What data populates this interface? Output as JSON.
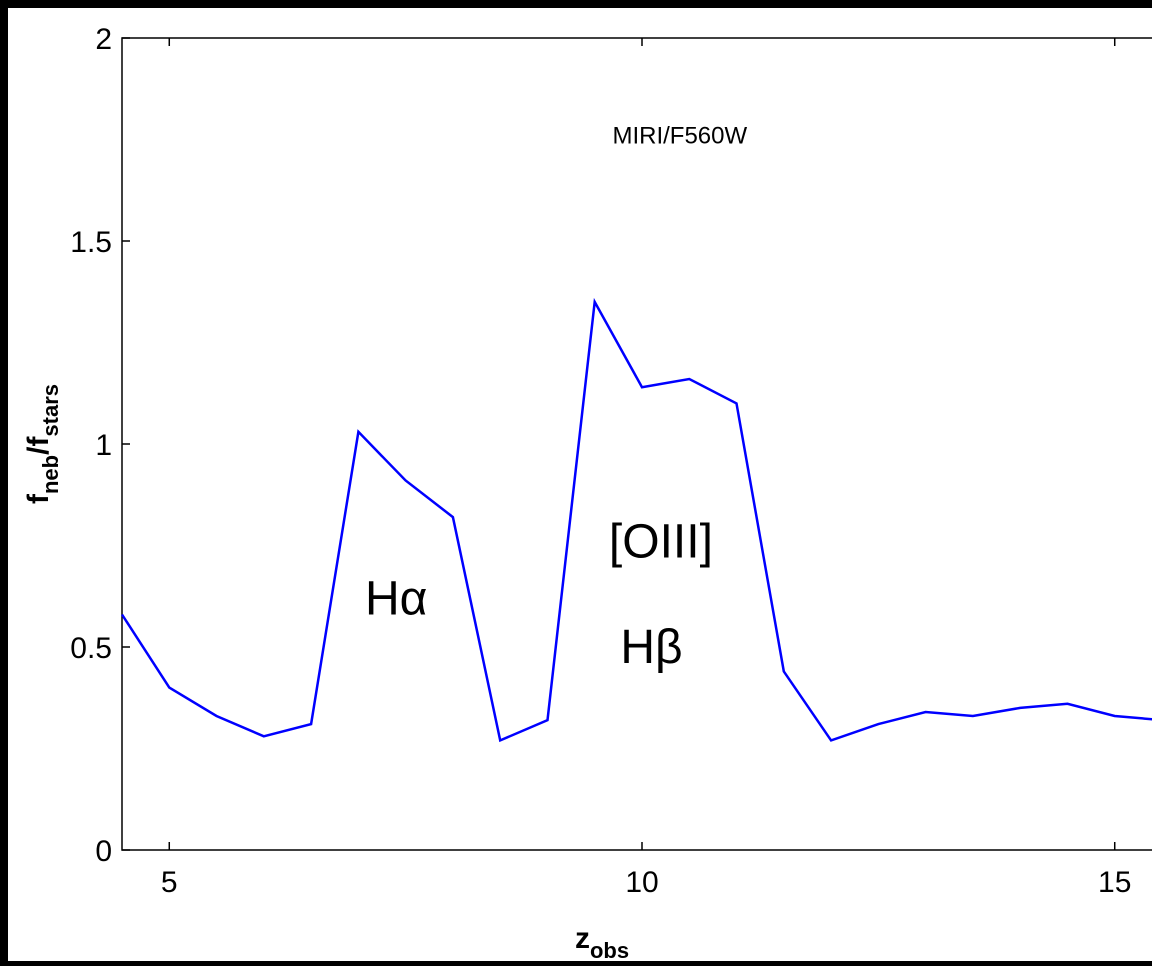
{
  "chart_data": {
    "type": "line",
    "title": "",
    "xlabel": {
      "main": "z",
      "sub": "obs"
    },
    "ylabel": {
      "main": "f",
      "sub1": "neb",
      "mid": "/f",
      "sub2": "stars"
    },
    "xlim": [
      4.5,
      15.5
    ],
    "ylim": [
      0,
      2
    ],
    "xticks": [
      5,
      10,
      15
    ],
    "xtick_labels": [
      "5",
      "10",
      "15"
    ],
    "yticks": [
      0,
      0.5,
      1,
      1.5,
      2
    ],
    "ytick_labels": [
      "0",
      "0.5",
      "1",
      "1.5",
      "2"
    ],
    "grid": false,
    "series": [
      {
        "color": "#0000ff",
        "x": [
          4.5,
          5.0,
          5.5,
          6.0,
          6.5,
          7.0,
          7.5,
          8.0,
          8.5,
          9.0,
          9.5,
          10.0,
          10.5,
          11.0,
          11.5,
          12.0,
          12.5,
          13.0,
          13.5,
          14.0,
          14.5,
          15.0,
          15.5
        ],
        "y": [
          0.58,
          0.4,
          0.33,
          0.28,
          0.31,
          1.03,
          0.91,
          0.82,
          0.27,
          0.32,
          1.35,
          1.14,
          1.16,
          1.1,
          0.44,
          0.27,
          0.31,
          0.34,
          0.33,
          0.35,
          0.36,
          0.33,
          0.32
        ]
      }
    ],
    "annotations": [
      {
        "id": "filter",
        "text": "MIRI/F560W",
        "x": 10.4,
        "y": 1.74
      },
      {
        "id": "halpha",
        "text": "Hα",
        "x": 7.4,
        "y": 0.58
      },
      {
        "id": "oiii",
        "text": "[OIII]",
        "x": 10.2,
        "y": 0.72
      },
      {
        "id": "hbeta",
        "text": "Hβ",
        "x": 10.1,
        "y": 0.46
      }
    ]
  }
}
